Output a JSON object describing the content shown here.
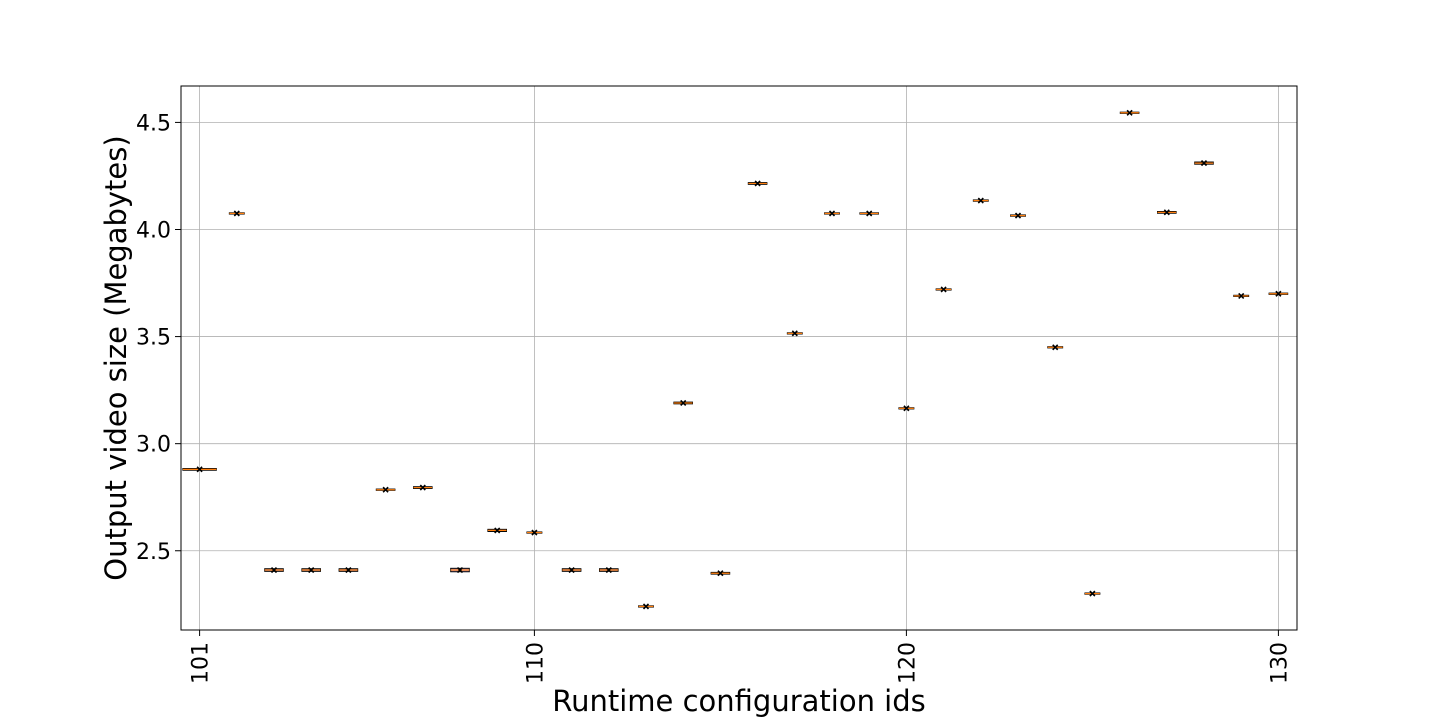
{
  "chart_data": {
    "type": "box",
    "xlabel": "Runtime configuration ids",
    "ylabel": "Output video size (Megabytes)",
    "x_ticks": [
      "101",
      "110",
      "120",
      "130"
    ],
    "y_ticks": [
      "2.5",
      "3.0",
      "3.5",
      "4.0",
      "4.5"
    ],
    "xlim": [
      100.5,
      130.5
    ],
    "ylim": [
      2.13,
      4.67
    ],
    "grid": true,
    "legend": "none",
    "colors": {
      "box": "#000000",
      "median": "#ff7f0e",
      "marker": "#000000",
      "fill": "#9467bd"
    },
    "categories": [
      101,
      102,
      103,
      104,
      105,
      106,
      107,
      108,
      109,
      110,
      111,
      112,
      113,
      114,
      115,
      116,
      117,
      118,
      119,
      120,
      121,
      122,
      123,
      124,
      125,
      126,
      127,
      128,
      129,
      130
    ],
    "values": [
      2.88,
      4.075,
      2.41,
      2.41,
      2.41,
      2.785,
      2.795,
      2.41,
      2.595,
      2.585,
      2.41,
      2.41,
      2.24,
      3.19,
      2.395,
      4.215,
      3.515,
      4.075,
      4.075,
      3.165,
      3.72,
      4.135,
      4.065,
      3.45,
      2.3,
      4.545,
      4.08,
      4.31,
      3.69,
      3.7
    ],
    "box_half_width": [
      0.45,
      0.2,
      0.25,
      0.25,
      0.25,
      0.25,
      0.25,
      0.25,
      0.25,
      0.2,
      0.25,
      0.25,
      0.2,
      0.25,
      0.25,
      0.25,
      0.2,
      0.2,
      0.25,
      0.2,
      0.2,
      0.2,
      0.2,
      0.2,
      0.2,
      0.25,
      0.25,
      0.25,
      0.2,
      0.25
    ],
    "box_half_height": [
      0.004,
      0.002,
      0.006,
      0.006,
      0.006,
      0.003,
      0.004,
      0.008,
      0.005,
      0.002,
      0.006,
      0.006,
      0.002,
      0.004,
      0.004,
      0.004,
      0.002,
      0.002,
      0.002,
      0.002,
      0.002,
      0.003,
      0.003,
      0.002,
      0.002,
      0.002,
      0.004,
      0.005,
      0.002,
      0.003
    ]
  }
}
